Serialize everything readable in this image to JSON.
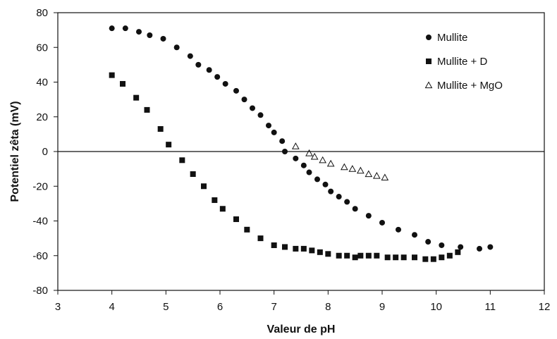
{
  "chart_data": {
    "type": "scatter",
    "xlabel": "Valeur de pH",
    "ylabel": "Potentiel zêta (mV)",
    "xlim": [
      3,
      12
    ],
    "ylim": [
      -80,
      80
    ],
    "xticks": [
      3,
      4,
      5,
      6,
      7,
      8,
      9,
      10,
      11,
      12
    ],
    "yticks": [
      80,
      60,
      40,
      20,
      0,
      -20,
      -40,
      -60,
      -80
    ],
    "grid": false,
    "zero_line": true,
    "legend_position": "top-right",
    "series": [
      {
        "name": "Mullite",
        "marker": "circle-filled",
        "color": "#111111",
        "points": [
          [
            4.0,
            71
          ],
          [
            4.25,
            71
          ],
          [
            4.5,
            69
          ],
          [
            4.7,
            67
          ],
          [
            4.95,
            65
          ],
          [
            5.2,
            60
          ],
          [
            5.45,
            55
          ],
          [
            5.6,
            50
          ],
          [
            5.8,
            47
          ],
          [
            5.95,
            43
          ],
          [
            6.1,
            39
          ],
          [
            6.3,
            35
          ],
          [
            6.45,
            30
          ],
          [
            6.6,
            25
          ],
          [
            6.75,
            21
          ],
          [
            6.9,
            15
          ],
          [
            7.0,
            11
          ],
          [
            7.15,
            6
          ],
          [
            7.2,
            0
          ],
          [
            7.4,
            -4
          ],
          [
            7.55,
            -8
          ],
          [
            7.65,
            -12
          ],
          [
            7.8,
            -16
          ],
          [
            7.95,
            -19
          ],
          [
            8.05,
            -23
          ],
          [
            8.2,
            -26
          ],
          [
            8.35,
            -29
          ],
          [
            8.5,
            -33
          ],
          [
            8.75,
            -37
          ],
          [
            9.0,
            -41
          ],
          [
            9.3,
            -45
          ],
          [
            9.6,
            -48
          ],
          [
            9.85,
            -52
          ],
          [
            10.1,
            -54
          ],
          [
            10.45,
            -55
          ],
          [
            10.8,
            -56
          ],
          [
            11.0,
            -55
          ]
        ]
      },
      {
        "name": "Mullite + D",
        "marker": "square-filled",
        "color": "#111111",
        "points": [
          [
            4.0,
            44
          ],
          [
            4.2,
            39
          ],
          [
            4.45,
            31
          ],
          [
            4.65,
            24
          ],
          [
            4.9,
            13
          ],
          [
            5.05,
            4
          ],
          [
            5.3,
            -5
          ],
          [
            5.5,
            -13
          ],
          [
            5.7,
            -20
          ],
          [
            5.9,
            -28
          ],
          [
            6.05,
            -33
          ],
          [
            6.3,
            -39
          ],
          [
            6.5,
            -45
          ],
          [
            6.75,
            -50
          ],
          [
            7.0,
            -54
          ],
          [
            7.2,
            -55
          ],
          [
            7.4,
            -56
          ],
          [
            7.55,
            -56
          ],
          [
            7.7,
            -57
          ],
          [
            7.85,
            -58
          ],
          [
            8.0,
            -59
          ],
          [
            8.2,
            -60
          ],
          [
            8.35,
            -60
          ],
          [
            8.5,
            -61
          ],
          [
            8.6,
            -60
          ],
          [
            8.75,
            -60
          ],
          [
            8.9,
            -60
          ],
          [
            9.1,
            -61
          ],
          [
            9.25,
            -61
          ],
          [
            9.4,
            -61
          ],
          [
            9.6,
            -61
          ],
          [
            9.8,
            -62
          ],
          [
            9.95,
            -62
          ],
          [
            10.1,
            -61
          ],
          [
            10.25,
            -60
          ],
          [
            10.4,
            -58
          ]
        ]
      },
      {
        "name": "Mullite + MgO",
        "marker": "triangle-open",
        "color": "#111111",
        "points": [
          [
            7.4,
            3
          ],
          [
            7.65,
            -1
          ],
          [
            7.75,
            -3
          ],
          [
            7.9,
            -5
          ],
          [
            8.05,
            -7
          ],
          [
            8.3,
            -9
          ],
          [
            8.45,
            -10
          ],
          [
            8.6,
            -11
          ],
          [
            8.75,
            -13
          ],
          [
            8.9,
            -14
          ],
          [
            9.05,
            -15
          ]
        ]
      }
    ]
  }
}
